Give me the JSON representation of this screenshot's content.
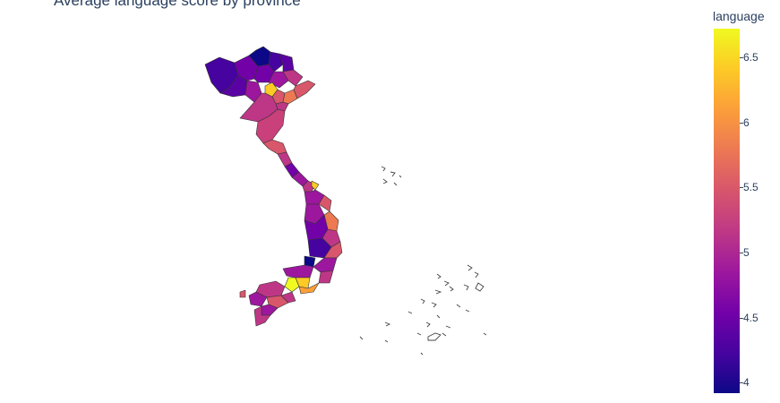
{
  "title": "Average language score by province",
  "colorbar": {
    "title": "language",
    "ticks": [
      "4",
      "4.5",
      "5",
      "5.5",
      "6",
      "6.5"
    ],
    "range": [
      3.92,
      6.72
    ]
  },
  "scale_colors": [
    "#0d0887",
    "#46039f",
    "#7201a8",
    "#9c179e",
    "#bd3786",
    "#d8576b",
    "#ed7953",
    "#fb9f3a",
    "#fdca26",
    "#f0f921"
  ]
}
